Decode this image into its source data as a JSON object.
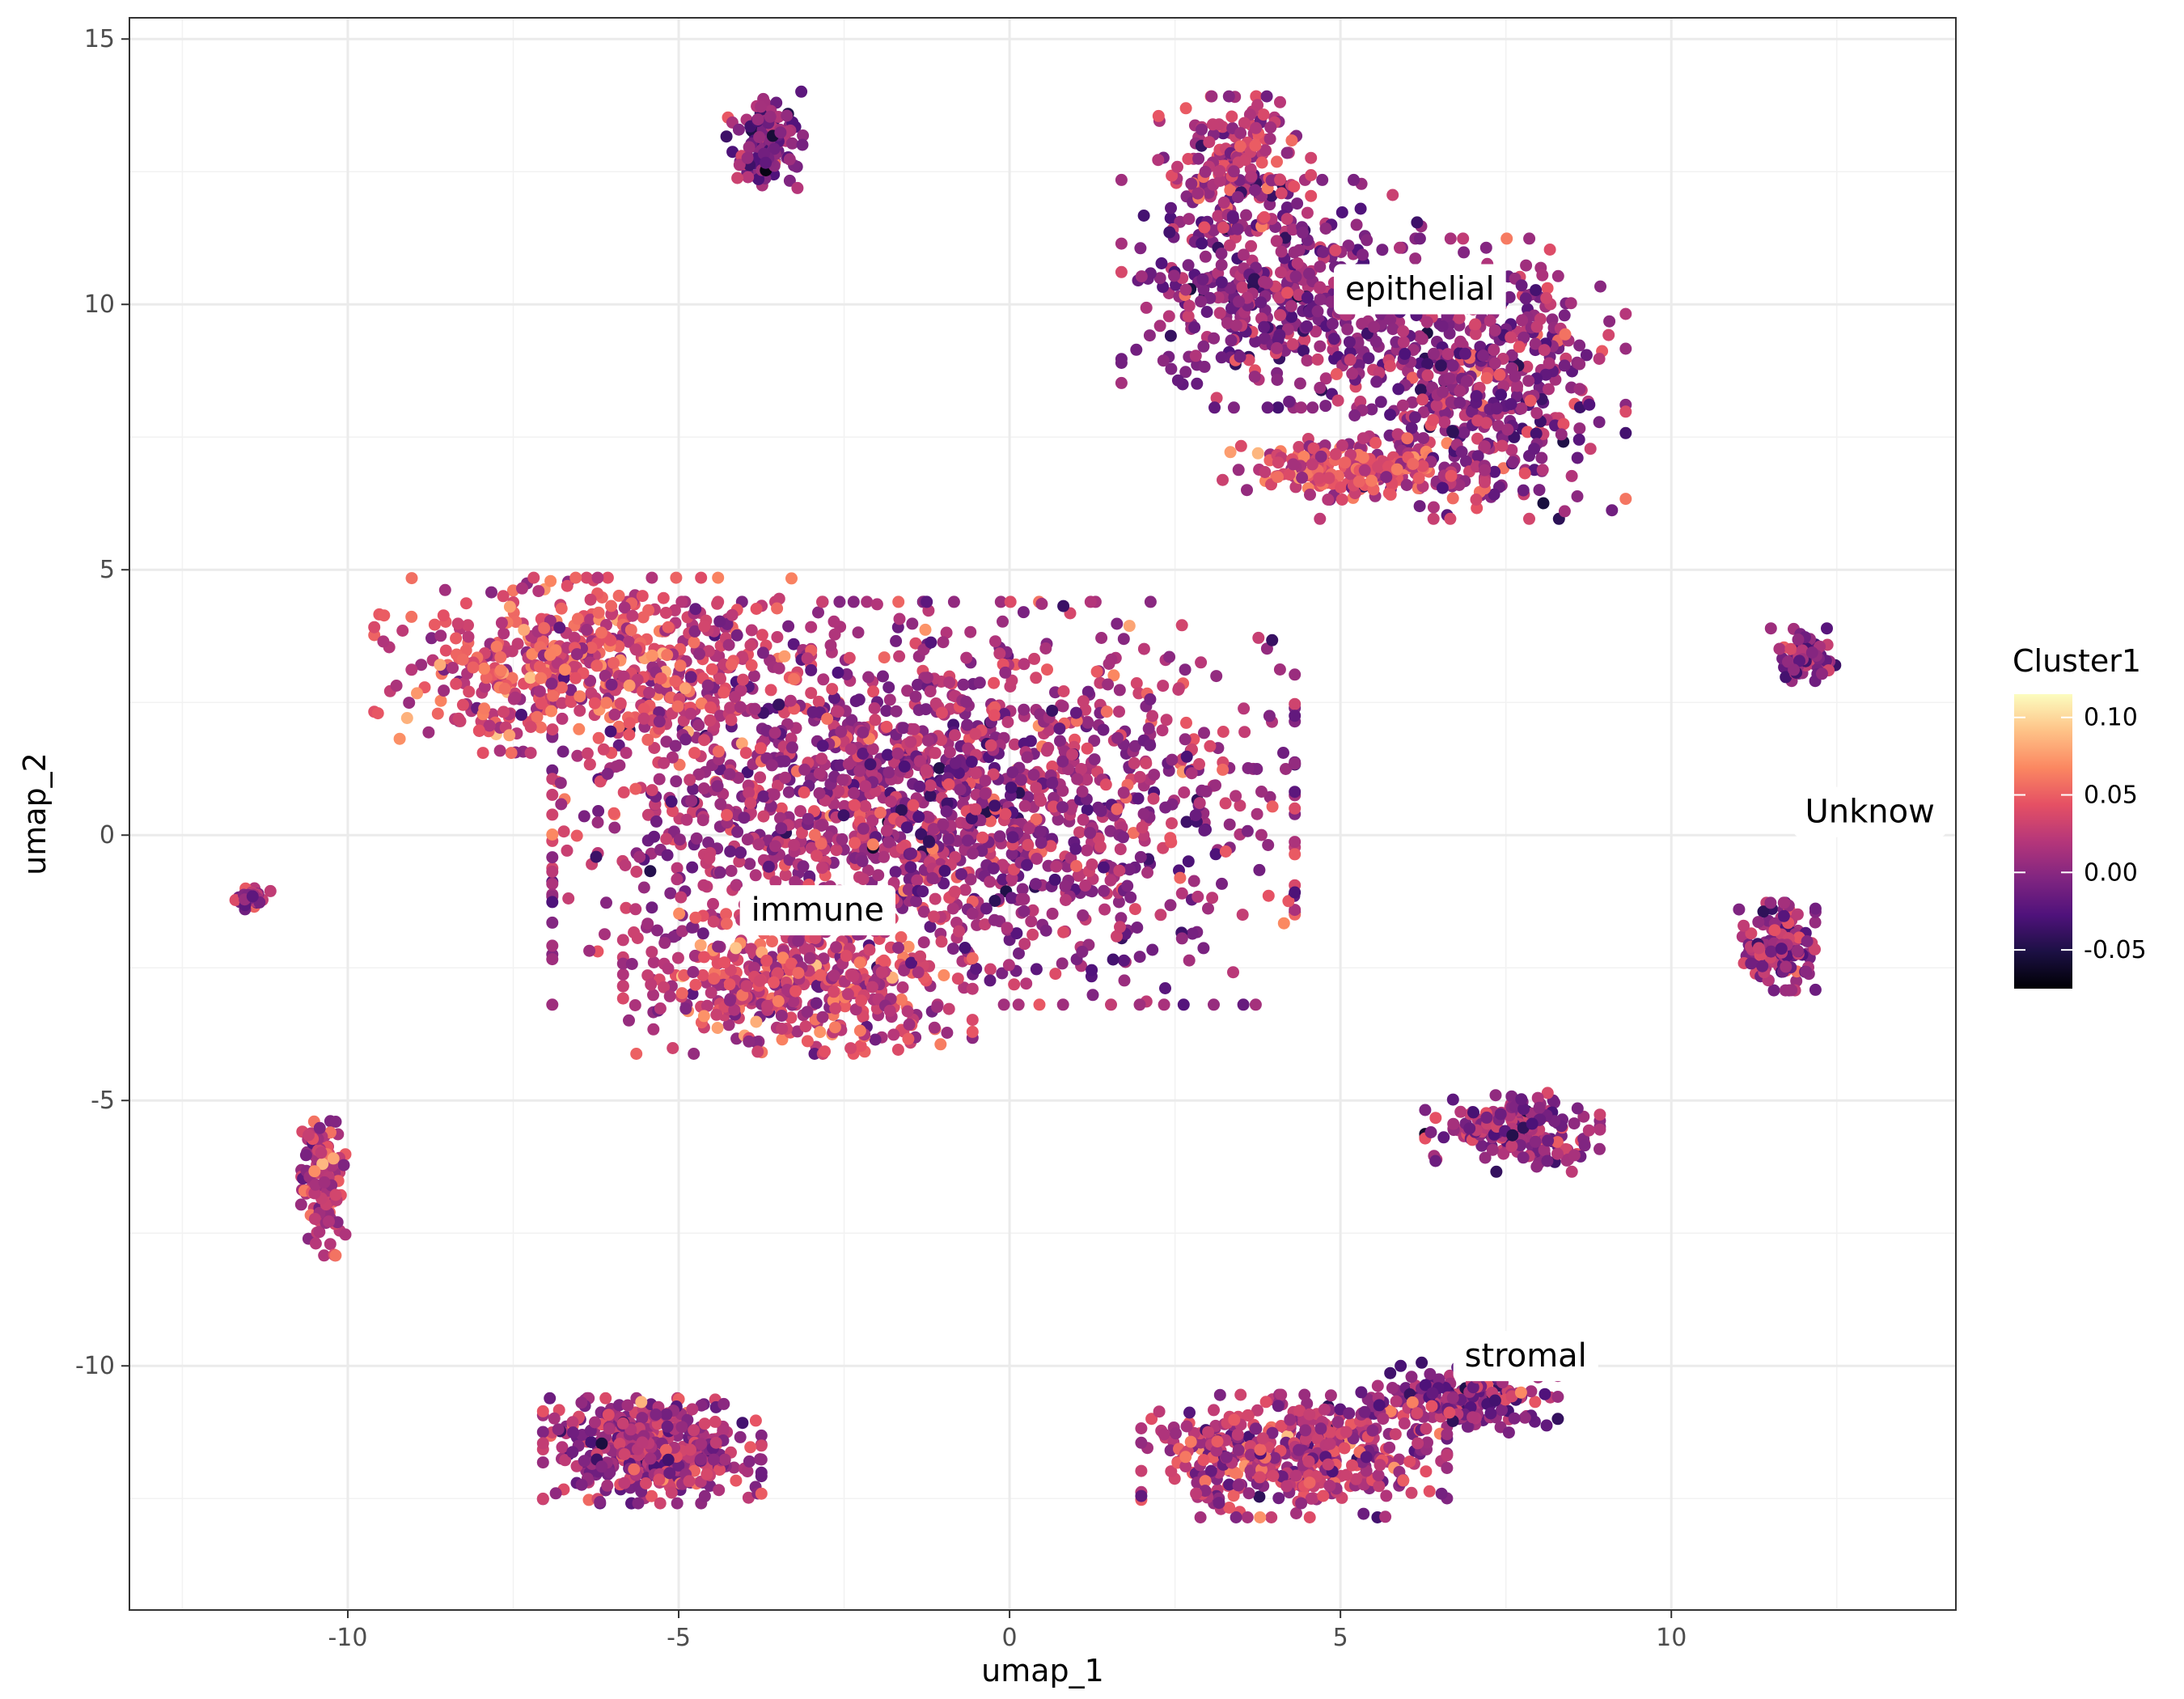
{
  "chart_data": {
    "type": "scatter",
    "title": "",
    "xlabel": "umap_1",
    "ylabel": "umap_2",
    "xlim": [
      -13.3,
      14.3
    ],
    "ylim": [
      -14.6,
      15.4
    ],
    "x_ticks": [
      -10,
      -5,
      0,
      5,
      10
    ],
    "x_tick_labels": [
      "-10",
      "-5",
      "0",
      "5",
      "10"
    ],
    "y_ticks": [
      -10,
      -5,
      0,
      5,
      10,
      15
    ],
    "y_tick_labels": [
      "-10",
      "-5",
      "0",
      "5",
      "10",
      "15"
    ],
    "grid": true,
    "color_scale": {
      "name": "Cluster1",
      "palette": "magma",
      "range": [
        -0.075,
        0.115
      ],
      "ticks": [
        0.1,
        0.05,
        0.0,
        -0.05
      ],
      "tick_labels": [
        "0.10",
        "0.05",
        "0.00",
        "-0.05"
      ],
      "colors": [
        "#000004",
        "#1c1044",
        "#4f127b",
        "#812581",
        "#b5367a",
        "#e55064",
        "#fb8761",
        "#fec287",
        "#fcfdbf"
      ]
    },
    "legend_position": "right",
    "cluster_labels": [
      {
        "text": "epithelial",
        "x": 6.2,
        "y": 10.3
      },
      {
        "text": "immune",
        "x": -2.9,
        "y": -1.4
      },
      {
        "text": "Unknow",
        "x": 13.0,
        "y": 0.45
      },
      {
        "text": "stromal",
        "x": 7.8,
        "y": -9.8
      }
    ],
    "clusters": [
      {
        "region": "immune-main",
        "cx": -1.3,
        "cy": 0.6,
        "sx": 3.4,
        "sy": 2.3,
        "n": 1700,
        "mean": 0.012
      },
      {
        "region": "immune-upper-left",
        "cx": -6.3,
        "cy": 3.2,
        "sx": 2.0,
        "sy": 1.0,
        "n": 550,
        "mean": 0.035
      },
      {
        "region": "immune-lower",
        "cx": -3.2,
        "cy": -2.8,
        "sx": 1.6,
        "sy": 0.8,
        "n": 420,
        "mean": 0.032
      },
      {
        "region": "epithelial-left",
        "cx": 4.0,
        "cy": 10.2,
        "sx": 1.4,
        "sy": 1.3,
        "n": 420,
        "mean": 0.0
      },
      {
        "region": "epithelial-right",
        "cx": 7.0,
        "cy": 8.6,
        "sx": 1.4,
        "sy": 1.6,
        "n": 520,
        "mean": 0.005
      },
      {
        "region": "epithelial-top",
        "cx": 3.4,
        "cy": 12.6,
        "sx": 0.7,
        "sy": 0.8,
        "n": 160,
        "mean": 0.02
      },
      {
        "region": "epithelial-bottom",
        "cx": 5.2,
        "cy": 6.9,
        "sx": 1.2,
        "sy": 0.35,
        "n": 220,
        "mean": 0.03
      },
      {
        "region": "stromal",
        "cx": 4.3,
        "cy": -11.7,
        "sx": 1.4,
        "sy": 0.7,
        "n": 460,
        "mean": 0.018
      },
      {
        "region": "stromal-upper",
        "cx": 6.8,
        "cy": -10.6,
        "sx": 0.9,
        "sy": 0.4,
        "n": 180,
        "mean": 0.0
      },
      {
        "region": "bottom-left",
        "cx": -5.4,
        "cy": -11.6,
        "sx": 1.0,
        "sy": 0.6,
        "n": 420,
        "mean": 0.012
      },
      {
        "region": "mid-right",
        "cx": 7.6,
        "cy": -5.6,
        "sx": 0.8,
        "sy": 0.45,
        "n": 200,
        "mean": 0.005
      },
      {
        "region": "unknow",
        "cx": 11.6,
        "cy": -2.1,
        "sx": 0.35,
        "sy": 0.5,
        "n": 150,
        "mean": 0.005
      },
      {
        "region": "top-small-right",
        "cx": 12.0,
        "cy": 3.4,
        "sx": 0.3,
        "sy": 0.3,
        "n": 70,
        "mean": 0.0
      },
      {
        "region": "top-small-left",
        "cx": -3.7,
        "cy": 13.1,
        "sx": 0.35,
        "sy": 0.55,
        "n": 130,
        "mean": -0.005
      },
      {
        "region": "left-strip",
        "cx": -10.4,
        "cy": -6.6,
        "sx": 0.22,
        "sy": 0.8,
        "n": 120,
        "mean": 0.025
      },
      {
        "region": "far-left",
        "cx": -11.5,
        "cy": -1.2,
        "sx": 0.2,
        "sy": 0.12,
        "n": 30,
        "mean": 0.01
      }
    ]
  }
}
